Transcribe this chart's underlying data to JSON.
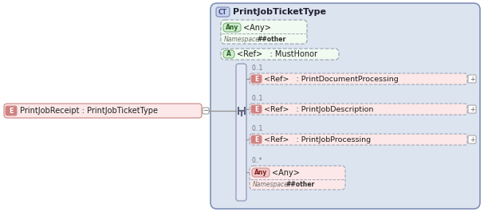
{
  "bg_outer_color": "#ffffff",
  "container_fill": "#dce4f0",
  "container_border": "#8090b8",
  "title": "PrintJobTicketType",
  "title_badge": "CT",
  "ct_fill": "#c8d4ee",
  "ct_border": "#8090b8",
  "ct_text_color": "#404880",
  "main_fill": "#fce8e8",
  "main_border": "#d09090",
  "main_badge_fill": "#d08080",
  "main_badge_color": "#ffffff",
  "main_label": "E",
  "main_text": "PrintJobReceipt : PrintJobTicketType",
  "any_top_fill": "#f0faf0",
  "any_top_border": "#90c090",
  "any_badge_fill": "#d0ecd0",
  "any_badge_border": "#80b080",
  "any_badge_text": "#2a6020",
  "attr_fill": "#f0faf0",
  "attr_border": "#90c090",
  "attr_badge_fill": "#d0ecd0",
  "seq_fill": "#e4e8f4",
  "seq_border": "#9098b8",
  "elem_fill": "#fce8e8",
  "elem_border": "#d09090",
  "elem_badge_fill": "#d08080",
  "elem_badge_color": "#ffffff",
  "any_bot_fill": "#fce8e8",
  "any_bot_border": "#d09090",
  "any_bot_badge_fill": "#f0c8c8",
  "any_bot_badge_border": "#d09090",
  "any_bot_badge_text": "#802020",
  "dash_color": "#a0a8b8",
  "line_color": "#909090",
  "mult_color": "#707080",
  "ns_label_color": "#707070",
  "ns_value_color": "#303030",
  "plus_fill": "#ffffff",
  "plus_border": "#a0a0a0",
  "any_top_text": "<Any>",
  "any_top_ns_label": "Namespace",
  "any_top_ns_value": "##other",
  "attr_text": "<Ref>   : MustHonor",
  "elements": [
    {
      "text": "<Ref>   : PrintDocumentProcessing",
      "mult": "0..1"
    },
    {
      "text": "<Ref>   : PrintJobDescription",
      "mult": "0..1"
    },
    {
      "text": "<Ref>   : PrintJobProcessing",
      "mult": "0..1"
    }
  ],
  "any_bot_text": "<Any>",
  "any_bot_ns_label": "Namespace",
  "any_bot_ns_value": "##other",
  "any_bot_mult": "0..*"
}
